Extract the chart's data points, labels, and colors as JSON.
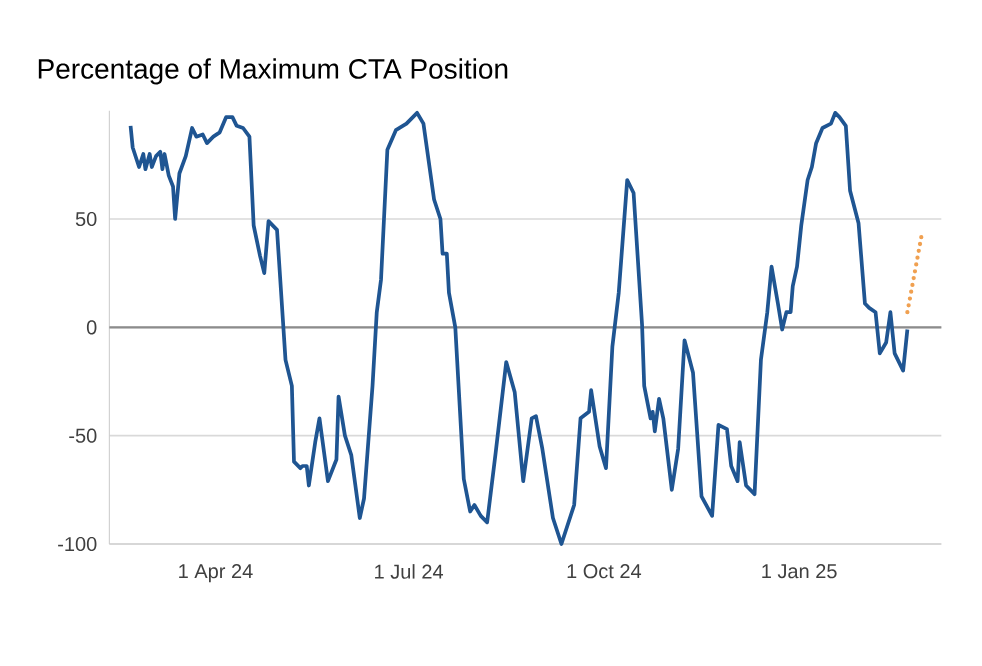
{
  "chart_data": {
    "type": "line",
    "title": "Percentage of Maximum CTA Position",
    "xlim": [
      "2024-02-11",
      "2025-03-09"
    ],
    "ylim": [
      -100,
      100
    ],
    "xticks": [
      {
        "value": "2024-04-01",
        "label": "1 Apr 24"
      },
      {
        "value": "2024-07-01",
        "label": "1 Jul 24"
      },
      {
        "value": "2024-10-01",
        "label": "1 Oct 24"
      },
      {
        "value": "2025-01-01",
        "label": "1 Jan 25"
      }
    ],
    "yticks": [
      -100,
      -50,
      0,
      50
    ],
    "grid": "y",
    "marker": "none",
    "ref_lines": [
      {
        "axis": "y",
        "value": 0,
        "color": "#8c8c8c"
      }
    ],
    "series": [
      {
        "color": "#1f5592",
        "line_style": "solid",
        "x": [
          "2024-02-21",
          "2024-02-22",
          "2024-02-25",
          "2024-02-27",
          "2024-02-28",
          "2024-03-01",
          "2024-03-02",
          "2024-03-04",
          "2024-03-06",
          "2024-03-07",
          "2024-03-08",
          "2024-03-10",
          "2024-03-12",
          "2024-03-13",
          "2024-03-15",
          "2024-03-18",
          "2024-03-21",
          "2024-03-23",
          "2024-03-26",
          "2024-03-28",
          "2024-03-31",
          "2024-04-03",
          "2024-04-06",
          "2024-04-09",
          "2024-04-11",
          "2024-04-14",
          "2024-04-17",
          "2024-04-19",
          "2024-04-22",
          "2024-04-24",
          "2024-04-26",
          "2024-04-30",
          "2024-05-03",
          "2024-05-04",
          "2024-05-07",
          "2024-05-08",
          "2024-05-11",
          "2024-05-12",
          "2024-05-14",
          "2024-05-15",
          "2024-05-18",
          "2024-05-20",
          "2024-05-24",
          "2024-05-28",
          "2024-05-29",
          "2024-06-01",
          "2024-06-04",
          "2024-06-08",
          "2024-06-10",
          "2024-06-14",
          "2024-06-16",
          "2024-06-18",
          "2024-06-21",
          "2024-06-25",
          "2024-06-30",
          "2024-07-05",
          "2024-07-08",
          "2024-07-13",
          "2024-07-16",
          "2024-07-17",
          "2024-07-19",
          "2024-07-20",
          "2024-07-23",
          "2024-07-27",
          "2024-07-30",
          "2024-08-01",
          "2024-08-04",
          "2024-08-07",
          "2024-08-11",
          "2024-08-16",
          "2024-08-20",
          "2024-08-24",
          "2024-08-28",
          "2024-08-30",
          "2024-09-02",
          "2024-09-07",
          "2024-09-11",
          "2024-09-17",
          "2024-09-20",
          "2024-09-24",
          "2024-09-25",
          "2024-09-29",
          "2024-10-02",
          "2024-10-05",
          "2024-10-08",
          "2024-10-12",
          "2024-10-15",
          "2024-10-19",
          "2024-10-20",
          "2024-10-23",
          "2024-10-24",
          "2024-10-25",
          "2024-10-27",
          "2024-10-29",
          "2024-11-02",
          "2024-11-05",
          "2024-11-08",
          "2024-11-12",
          "2024-11-16",
          "2024-11-21",
          "2024-11-24",
          "2024-11-28",
          "2024-11-30",
          "2024-12-03",
          "2024-12-04",
          "2024-12-07",
          "2024-12-11",
          "2024-12-14",
          "2024-12-17",
          "2024-12-19",
          "2024-12-22",
          "2024-12-24",
          "2024-12-26",
          "2024-12-28",
          "2024-12-29",
          "2024-12-31",
          "2025-01-02",
          "2025-01-05",
          "2025-01-07",
          "2025-01-09",
          "2025-01-12",
          "2025-01-16",
          "2025-01-18",
          "2025-01-20",
          "2025-01-23",
          "2025-01-25",
          "2025-01-29",
          "2025-02-01",
          "2025-02-03",
          "2025-02-06",
          "2025-02-08",
          "2025-02-11",
          "2025-02-13",
          "2025-02-15",
          "2025-02-19",
          "2025-02-21"
        ],
        "values": [
          93,
          83,
          74,
          80,
          73,
          80,
          74,
          79,
          81,
          73,
          80,
          70,
          65,
          50,
          71,
          79,
          92,
          88,
          89,
          85,
          88,
          90,
          97,
          97,
          93,
          92,
          88,
          47,
          33,
          25,
          49,
          45,
          0,
          -15,
          -27,
          -62,
          -65,
          -64,
          -64,
          -73,
          -53,
          -42,
          -71,
          -61,
          -32,
          -50,
          -59,
          -88,
          -79,
          -27,
          7,
          22,
          82,
          91,
          94,
          99,
          94,
          59,
          50,
          34,
          34,
          16,
          0,
          -70,
          -85,
          -82,
          -87,
          -90,
          -58,
          -16,
          -30,
          -71,
          -42,
          -41,
          -56,
          -88,
          -100,
          -82,
          -42,
          -39,
          -29,
          -55,
          -65,
          -9,
          16,
          68,
          62,
          1,
          -27,
          -42,
          -39,
          -48,
          -33,
          -42,
          -75,
          -56,
          -6,
          -21,
          -78,
          -87,
          -45,
          -47,
          -64,
          -71,
          -53,
          -73,
          -77,
          -15,
          7,
          28,
          11,
          -1,
          7,
          7,
          19,
          28,
          47,
          68,
          74,
          85,
          92,
          94,
          99,
          97,
          93,
          63,
          48,
          11,
          9,
          7,
          -12,
          -7,
          7,
          -12,
          -20,
          -1
        ]
      },
      {
        "color": "#f0a050",
        "line_style": "dotted",
        "x": [
          "2025-02-21",
          "2025-02-28"
        ],
        "values": [
          7,
          44
        ]
      }
    ]
  }
}
